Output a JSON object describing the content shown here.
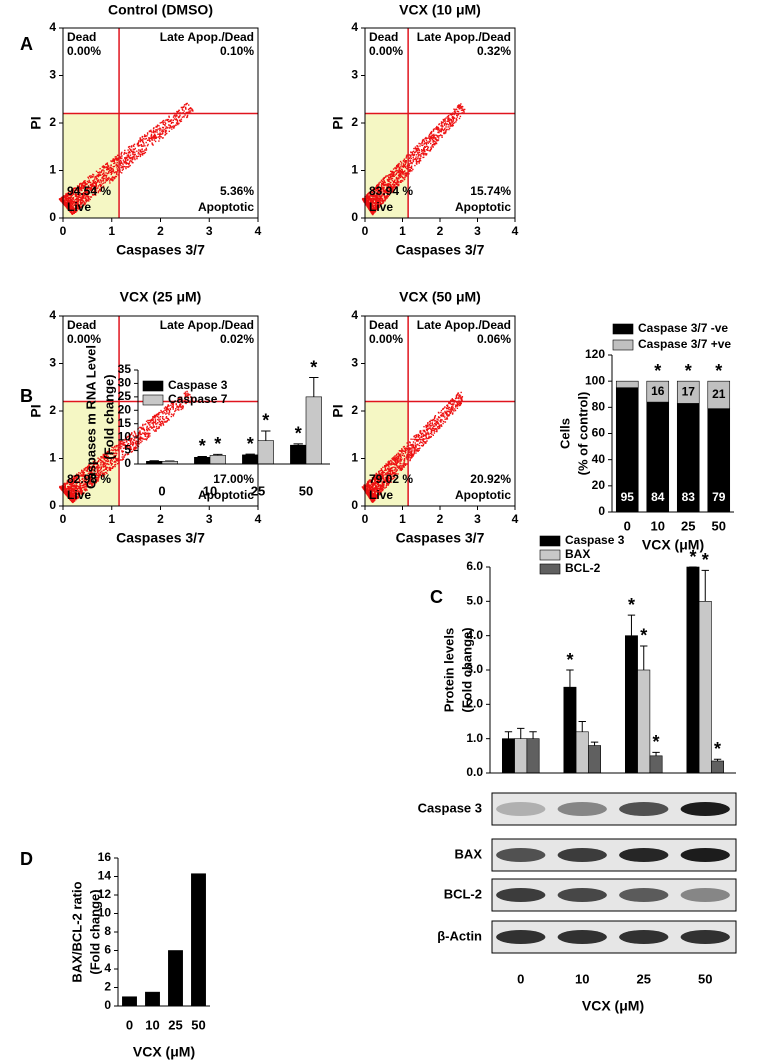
{
  "panel_labels": [
    "A",
    "B",
    "C",
    "D"
  ],
  "chart_data": [
    {
      "type": "scatter",
      "title": "Control (DMSO)",
      "xlabel": "Caspases 3/7",
      "ylabel": "PI",
      "xlim": [
        0,
        4
      ],
      "ylim": [
        0,
        4
      ],
      "xticks": [
        0,
        1,
        2,
        3,
        4
      ],
      "yticks": [
        0,
        1,
        2,
        3,
        4
      ],
      "gate_x": 1.15,
      "gate_y": 2.2,
      "quadrants": [
        [
          "Dead",
          "0.00%"
        ],
        [
          "Late Apop./Dead",
          "0.10%"
        ],
        [
          "Live",
          "94.54 %"
        ],
        [
          "Apoptotic",
          "5.36%"
        ]
      ]
    },
    {
      "type": "scatter",
      "title": "VCX (10 μM)",
      "xlabel": "Caspases 3/7",
      "ylabel": "PI",
      "xlim": [
        0,
        4
      ],
      "ylim": [
        0,
        4
      ],
      "xticks": [
        0,
        1,
        2,
        3,
        4
      ],
      "yticks": [
        0,
        1,
        2,
        3,
        4
      ],
      "gate_x": 1.15,
      "gate_y": 2.2,
      "quadrants": [
        [
          "Dead",
          "0.00%"
        ],
        [
          "Late Apop./Dead",
          "0.32%"
        ],
        [
          "Live",
          "83.94 %"
        ],
        [
          "Apoptotic",
          "15.74%"
        ]
      ]
    },
    {
      "type": "scatter",
      "title": "VCX (25 μM)",
      "xlabel": "Caspases 3/7",
      "ylabel": "PI",
      "xlim": [
        0,
        4
      ],
      "ylim": [
        0,
        4
      ],
      "xticks": [
        0,
        1,
        2,
        3,
        4
      ],
      "yticks": [
        0,
        1,
        2,
        3,
        4
      ],
      "gate_x": 1.15,
      "gate_y": 2.2,
      "quadrants": [
        [
          "Dead",
          "0.00%"
        ],
        [
          "Late Apop./Dead",
          "0.02%"
        ],
        [
          "Live",
          "82.98 %"
        ],
        [
          "Apoptotic",
          "17.00%"
        ]
      ]
    },
    {
      "type": "scatter",
      "title": "VCX (50 μM)",
      "xlabel": "Caspases 3/7",
      "ylabel": "PI",
      "xlim": [
        0,
        4
      ],
      "ylim": [
        0,
        4
      ],
      "xticks": [
        0,
        1,
        2,
        3,
        4
      ],
      "yticks": [
        0,
        1,
        2,
        3,
        4
      ],
      "gate_x": 1.15,
      "gate_y": 2.2,
      "quadrants": [
        [
          "Dead",
          "0.00%"
        ],
        [
          "Late Apop./Dead",
          "0.06%"
        ],
        [
          "Live",
          "79.02 %"
        ],
        [
          "Apoptotic",
          "20.92%"
        ]
      ]
    },
    {
      "type": "bar",
      "stacked": true,
      "ylabel": [
        "Cells",
        "(% of control)"
      ],
      "xlabel": "VCX (μM)",
      "categories": [
        "0",
        "10",
        "25",
        "50"
      ],
      "ylim": [
        0,
        120
      ],
      "yticks": [
        0,
        20,
        40,
        60,
        80,
        100,
        120
      ],
      "series": [
        {
          "name": "Caspase 3/7 -ve",
          "color": "#000000",
          "values": [
            95,
            84,
            83,
            79
          ]
        },
        {
          "name": "Caspase 3/7 +ve",
          "color": "#c0c0c0",
          "values": [
            5,
            16,
            17,
            21
          ],
          "value_labels": [
            null,
            "16",
            "17",
            "21"
          ]
        }
      ],
      "annotations": [
        null,
        "*",
        "*",
        "*"
      ]
    },
    {
      "type": "bar",
      "ylabel": [
        "Caspases m RNA Level",
        "(Fold change)"
      ],
      "categories": [
        "0",
        "10",
        "25",
        "50"
      ],
      "ylim": [
        0,
        35
      ],
      "yticks": [
        0,
        5,
        10,
        15,
        20,
        25,
        30,
        35
      ],
      "series": [
        {
          "name": "Caspase 3",
          "color": "#000000",
          "values": [
            1.0,
            2.5,
            3.4,
            7.0
          ],
          "errors": [
            0.2,
            0.3,
            0.3,
            0.5
          ],
          "annotations": [
            null,
            "*",
            "*",
            "*"
          ]
        },
        {
          "name": "Caspase 7",
          "color": "#c8c8c8",
          "values": [
            1.0,
            3.2,
            8.7,
            25
          ],
          "errors": [
            0.1,
            0.4,
            3.6,
            7.2
          ],
          "annotations": [
            null,
            "*",
            "*",
            "*"
          ]
        }
      ]
    },
    {
      "type": "bar",
      "ylabel": [
        "Protein levels",
        "(Fold change)"
      ],
      "xlabel": "VCX (μM)",
      "categories": [
        "0",
        "10",
        "25",
        "50"
      ],
      "ylim": [
        0,
        6
      ],
      "yticks": [
        {
          "value": 0,
          "label": "0.0"
        },
        {
          "value": 1,
          "label": "1.0"
        },
        {
          "value": 2,
          "label": "2.0"
        },
        {
          "value": 3,
          "label": "3.0"
        },
        {
          "value": 4,
          "label": "4.0"
        },
        {
          "value": 5,
          "label": "5.0"
        },
        {
          "value": 6,
          "label": "6.0"
        }
      ],
      "series": [
        {
          "name": "Caspase 3",
          "color": "#000000",
          "values": [
            1.0,
            2.5,
            4.0,
            6.0
          ],
          "errors": [
            0.2,
            0.5,
            0.6,
            0
          ],
          "annotations": [
            null,
            "*",
            "*",
            "*"
          ]
        },
        {
          "name": "BAX",
          "color": "#c8c8c8",
          "values": [
            1.0,
            1.2,
            3.0,
            5.0
          ],
          "errors": [
            0.3,
            0.3,
            0.7,
            0.9
          ],
          "annotations": [
            null,
            null,
            "*",
            "*"
          ]
        },
        {
          "name": "BCL-2",
          "color": "#606060",
          "values": [
            1.0,
            0.8,
            0.5,
            0.35
          ],
          "errors": [
            0.2,
            0.1,
            0.1,
            0.05
          ],
          "annotations": [
            null,
            null,
            "*",
            "*"
          ]
        }
      ],
      "blot_labels": [
        "Caspase 3",
        "BAX",
        "BCL-2",
        "β-Actin"
      ]
    },
    {
      "type": "bar",
      "ylabel": [
        "BAX/BCL-2 ratio",
        "(Fold change)"
      ],
      "xlabel": "VCX (μM)",
      "categories": [
        "0",
        "10",
        "25",
        "50"
      ],
      "ylim": [
        0,
        16
      ],
      "yticks": [
        0,
        2,
        4,
        6,
        8,
        10,
        12,
        14,
        16
      ],
      "color": "#000000",
      "values": [
        1,
        1.5,
        6,
        14.3
      ]
    }
  ]
}
